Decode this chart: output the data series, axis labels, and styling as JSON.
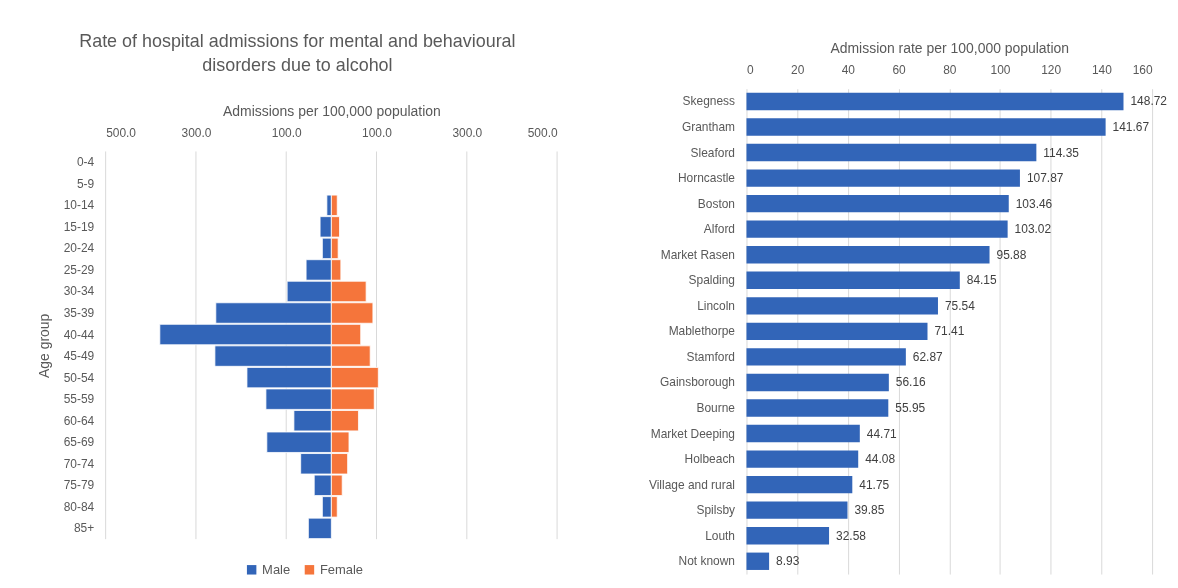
{
  "chart_data": [
    {
      "type": "bar",
      "orientation": "horizontal",
      "stacked": true,
      "title": "Rate of hospital admissions for mental and behavioural disorders due to alcohol",
      "xlabel": "Admissions per 100,000 population",
      "ylabel": "Age group",
      "categories": [
        "0-4",
        "5-9",
        "10-14",
        "15-19",
        "20-24",
        "25-29",
        "30-34",
        "35-39",
        "40-44",
        "45-49",
        "50-54",
        "55-59",
        "60-64",
        "65-69",
        "70-74",
        "75-79",
        "80-84",
        "85+"
      ],
      "series": [
        {
          "name": "Male",
          "color": "#3265b8",
          "values": [
            null,
            null,
            -10,
            -25,
            -20,
            -56,
            -98,
            -256,
            -380,
            -258,
            -187,
            -145,
            -83,
            -143,
            -68,
            -38,
            -20,
            -51
          ]
        },
        {
          "name": "Female",
          "color": "#f5753b",
          "values": [
            null,
            null,
            13,
            18,
            15,
            21,
            77,
            92,
            65,
            86,
            104,
            95,
            60,
            39,
            36,
            24,
            13,
            null
          ]
        }
      ],
      "xlim": [
        -500,
        500
      ],
      "xticks": [
        {
          "value": -500,
          "label": "500.0"
        },
        {
          "value": -300,
          "label": "300.0"
        },
        {
          "value": -100,
          "label": "100.0"
        },
        {
          "value": 100,
          "label": "100.0"
        },
        {
          "value": 300,
          "label": "300.0"
        },
        {
          "value": 500,
          "label": "500.0"
        }
      ],
      "grid": "x",
      "legend": "bottom"
    },
    {
      "type": "bar",
      "orientation": "horizontal",
      "xlabel": "Admission rate per 100,000 population",
      "categories": [
        "Skegness",
        "Grantham",
        "Sleaford",
        "Horncastle",
        "Boston",
        "Alford",
        "Market Rasen",
        "Spalding",
        "Lincoln",
        "Mablethorpe",
        "Stamford",
        "Gainsborough",
        "Bourne",
        "Market Deeping",
        "Holbeach",
        "Village and rural",
        "Spilsby",
        "Louth",
        "Not known"
      ],
      "values": [
        148.72,
        141.67,
        114.35,
        107.87,
        103.46,
        103.02,
        95.88,
        84.15,
        75.54,
        71.41,
        62.87,
        56.16,
        55.95,
        44.71,
        44.08,
        41.75,
        39.85,
        32.58,
        8.93
      ],
      "color": "#3265b8",
      "xlim": [
        0,
        160
      ],
      "xticks": [
        0,
        20,
        40,
        60,
        80,
        100,
        120,
        140,
        160
      ],
      "grid": "x",
      "data_labels": true
    }
  ]
}
